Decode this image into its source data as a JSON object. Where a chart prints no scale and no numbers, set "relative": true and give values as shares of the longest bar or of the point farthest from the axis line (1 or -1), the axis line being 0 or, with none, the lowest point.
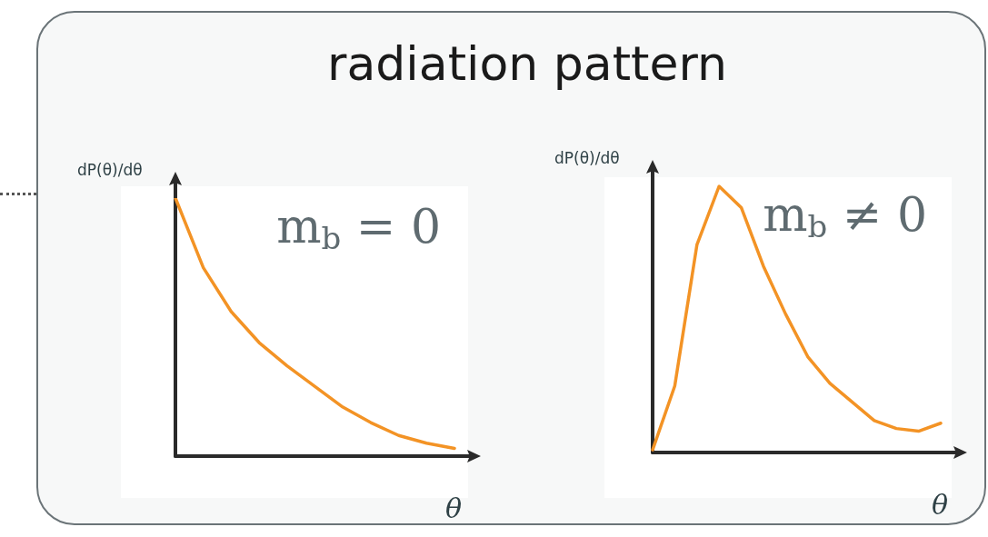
{
  "chart_data": [
    {
      "type": "line",
      "title": "radiation pattern",
      "xlabel": "θ",
      "ylabel": "dP(θ)/dθ",
      "annotations": [
        "m$_{b}$ = 0"
      ],
      "relative": true,
      "grid": false,
      "marker": "none",
      "line_style": "solid",
      "categories": [
        null,
        null,
        null,
        null,
        null,
        null,
        null,
        null,
        null,
        null,
        null
      ],
      "series": [
        {
          "color": "#f39325",
          "values": [
            1,
            0.73,
            0.56,
            0.44,
            0.35,
            0.27,
            0.19,
            0.13,
            0.08,
            0.05,
            0.03
          ]
        }
      ]
    },
    {
      "type": "line",
      "xlabel": "θ",
      "ylabel": "dP(θ)/dθ",
      "annotations": [
        "m$_{b}$ ≠ 0"
      ],
      "relative": true,
      "grid": false,
      "marker": "none",
      "line_style": "solid",
      "categories": [
        null,
        null,
        null,
        null,
        null,
        null,
        null,
        null,
        null,
        null,
        null,
        null,
        null,
        null
      ],
      "series": [
        {
          "color": "#f39325",
          "values": [
            0.01,
            0.25,
            0.78,
            1,
            0.92,
            0.7,
            0.52,
            0.36,
            0.26,
            0.19,
            0.12,
            0.09,
            0.08,
            0.11
          ]
        }
      ]
    }
  ]
}
